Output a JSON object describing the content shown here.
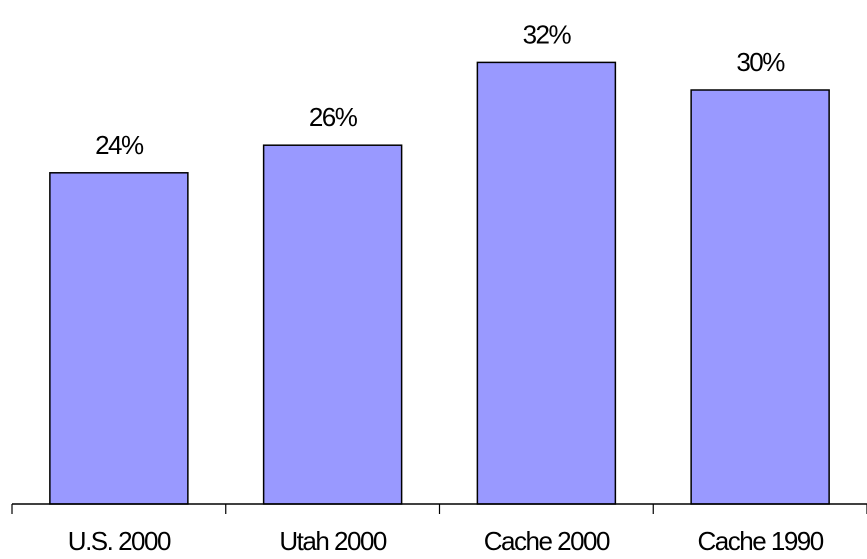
{
  "chart_data": {
    "type": "bar",
    "categories": [
      "U.S. 2000",
      "Utah 2000",
      "Cache 2000",
      "Cache 1990"
    ],
    "values": [
      24,
      26,
      32,
      30
    ],
    "data_labels": [
      "24%",
      "26%",
      "32%",
      "30%"
    ],
    "title": "",
    "xlabel": "",
    "ylabel": "",
    "ylim": [
      0,
      35
    ],
    "grid": false,
    "legend": "none",
    "bar_color": "#9999ff",
    "edge_color": "#000000"
  }
}
